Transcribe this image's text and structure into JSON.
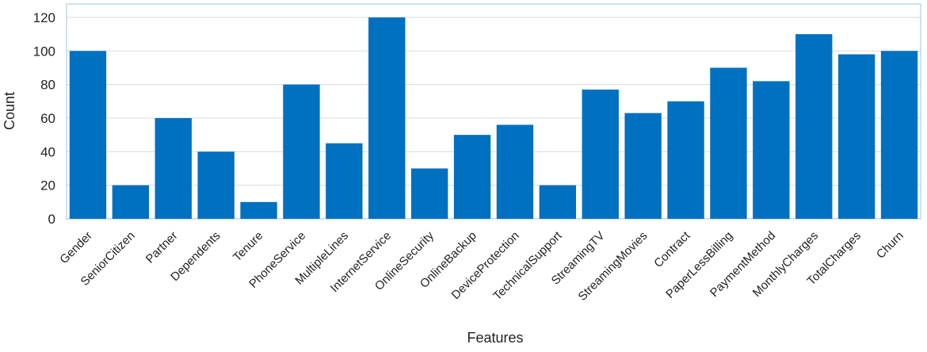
{
  "chart_data": {
    "type": "bar",
    "x_label": "Features",
    "y_label": "Count",
    "categories": [
      "Gender",
      "SeniorCitizen",
      "Partner",
      "Dependents",
      "Tenure",
      "PhoneService",
      "MultipleLines",
      "InternetService",
      "OnlineSecurity",
      "OnlineBackup",
      "DeviceProtection",
      "TechnicalSupport",
      "StreamingTV",
      "StreamingMovies",
      "Contract",
      "PaperLessBilling",
      "PaymentMethod",
      "MonthlyCharges",
      "TotalCharges",
      "Churn"
    ],
    "values": [
      100,
      20,
      60,
      40,
      10,
      80,
      45,
      120,
      30,
      50,
      56,
      20,
      77,
      63,
      70,
      90,
      82,
      110,
      98,
      100
    ],
    "color": "#0070c0",
    "ylim": [
      0,
      128
    ],
    "yticks": [
      0,
      20,
      40,
      60,
      80,
      100,
      120
    ],
    "grid": true
  }
}
